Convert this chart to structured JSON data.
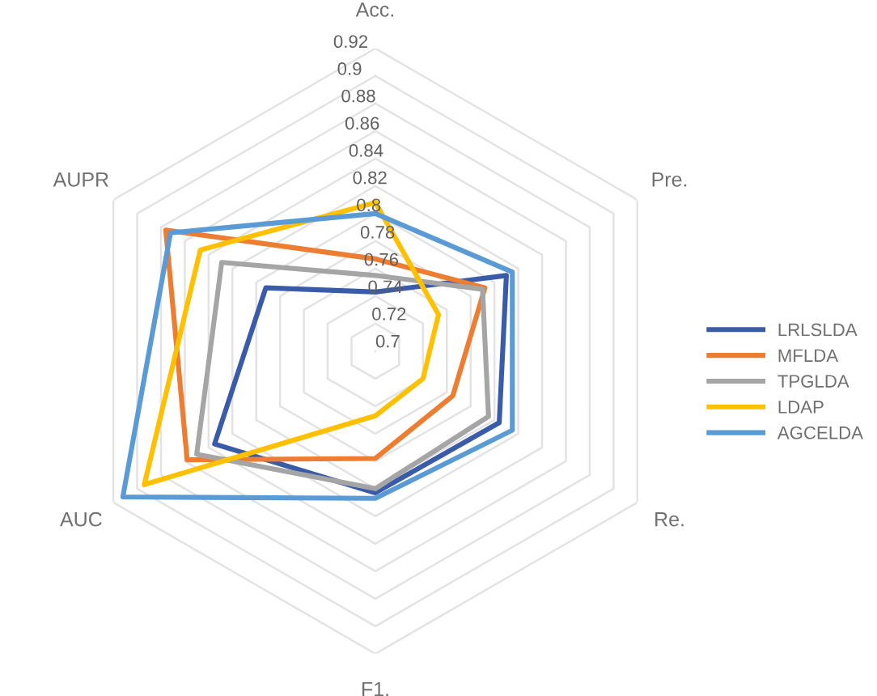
{
  "chart_data": {
    "type": "radar",
    "categories": [
      "Acc.",
      "Pre.",
      "Re.",
      "F1.",
      "AUC",
      "AUPR"
    ],
    "ylim": [
      0.7,
      0.92
    ],
    "yticks": [
      0.7,
      0.72,
      0.74,
      0.76,
      0.78,
      0.8,
      0.82,
      0.84,
      0.86,
      0.88,
      0.9,
      0.92
    ],
    "grid": true,
    "legend": "right",
    "line_style": "solid",
    "marker": "none",
    "series": [
      {
        "name": "LRLSLDA",
        "color": "#3a5ca8",
        "values": [
          0.743,
          0.81,
          0.804,
          0.803,
          0.835,
          0.792
        ]
      },
      {
        "name": "MFLDA",
        "color": "#ed7d31",
        "values": [
          0.767,
          0.792,
          0.765,
          0.778,
          0.858,
          0.876
        ]
      },
      {
        "name": "TPGLDA",
        "color": "#a5a5a5",
        "values": [
          0.755,
          0.79,
          0.795,
          0.8,
          0.85,
          0.829
        ]
      },
      {
        "name": "LDAP",
        "color": "#ffc000",
        "values": [
          0.808,
          0.753,
          0.74,
          0.747,
          0.894,
          0.847
        ]
      },
      {
        "name": "AGCELDA",
        "color": "#5b9bd5",
        "values": [
          0.8,
          0.815,
          0.815,
          0.807,
          0.912,
          0.872
        ]
      }
    ]
  }
}
